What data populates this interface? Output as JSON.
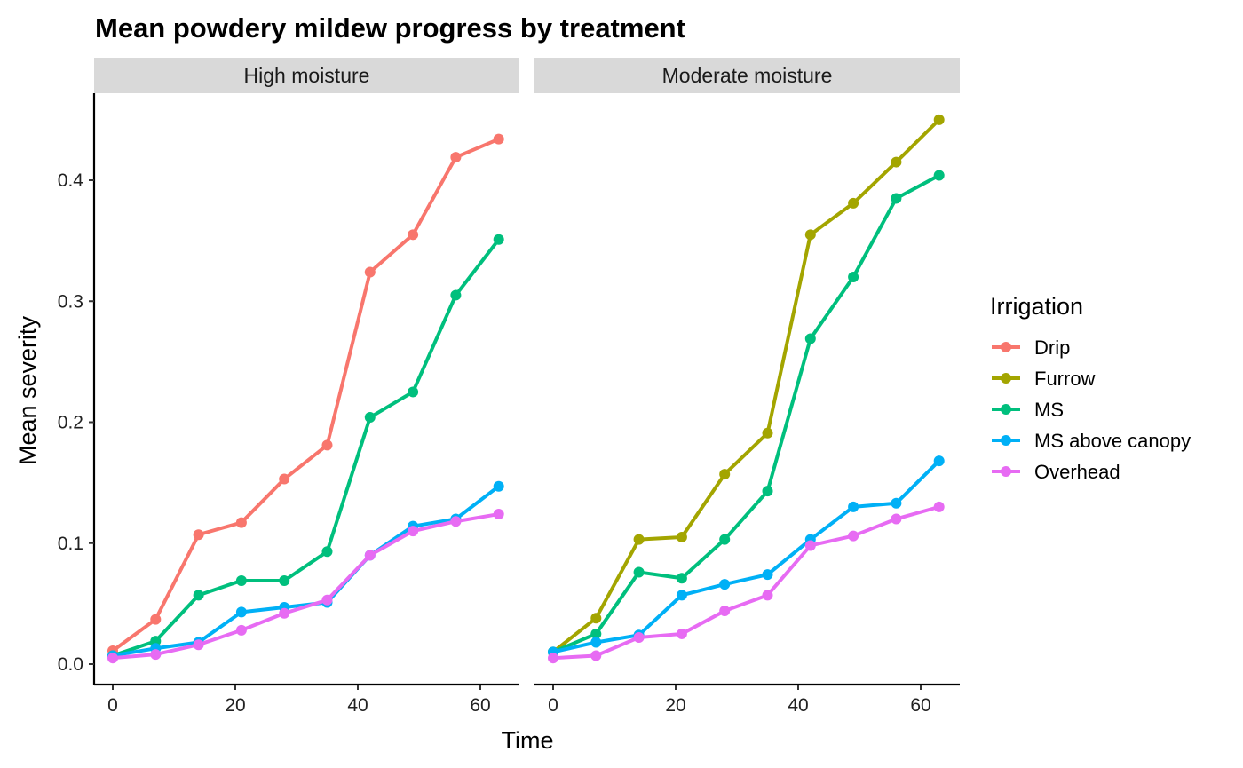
{
  "chart_data": {
    "type": "line",
    "title": "Mean powdery mildew progress by treatment",
    "xlabel": "Time",
    "ylabel": "Mean severity",
    "ylim": [
      -0.018,
      0.47
    ],
    "xlim": [
      -3,
      66
    ],
    "x_ticks": [
      0,
      20,
      40,
      60
    ],
    "y_ticks": [
      0.0,
      0.1,
      0.2,
      0.3,
      0.4
    ],
    "y_tick_labels": [
      "0.0",
      "0.1",
      "0.2",
      "0.3",
      "0.4"
    ],
    "grid": false,
    "legend_position": "right",
    "legend_title": "Irrigation",
    "legend": [
      {
        "name": "Drip",
        "color": "#F8766D"
      },
      {
        "name": "Furrow",
        "color": "#A3A500"
      },
      {
        "name": "MS",
        "color": "#00BF7D"
      },
      {
        "name": "MS above canopy",
        "color": "#00B0F6"
      },
      {
        "name": "Overhead",
        "color": "#E76BF3"
      }
    ],
    "x": [
      0,
      7,
      14,
      21,
      28,
      35,
      42,
      49,
      56,
      63
    ],
    "panels": [
      {
        "label": "High moisture",
        "series": [
          {
            "name": "Drip",
            "color": "#F8766D",
            "values": [
              0.011,
              0.037,
              0.107,
              0.117,
              0.153,
              0.181,
              0.324,
              0.355,
              0.419,
              0.434
            ]
          },
          {
            "name": "MS",
            "color": "#00BF7D",
            "values": [
              0.007,
              0.019,
              0.057,
              0.069,
              0.069,
              0.093,
              0.204,
              0.225,
              0.305,
              0.351
            ]
          },
          {
            "name": "MS above canopy",
            "color": "#00B0F6",
            "values": [
              0.007,
              0.013,
              0.018,
              0.043,
              0.047,
              0.051,
              0.09,
              0.114,
              0.12,
              0.147
            ]
          },
          {
            "name": "Overhead",
            "color": "#E76BF3",
            "values": [
              0.005,
              0.008,
              0.016,
              0.028,
              0.042,
              0.053,
              0.09,
              0.11,
              0.118,
              0.124
            ]
          }
        ]
      },
      {
        "label": "Moderate moisture",
        "series": [
          {
            "name": "Furrow",
            "color": "#A3A500",
            "values": [
              0.01,
              0.038,
              0.103,
              0.105,
              0.157,
              0.191,
              0.355,
              0.381,
              0.415,
              0.45
            ]
          },
          {
            "name": "MS",
            "color": "#00BF7D",
            "values": [
              0.01,
              0.025,
              0.076,
              0.071,
              0.103,
              0.143,
              0.269,
              0.32,
              0.385,
              0.404
            ]
          },
          {
            "name": "MS above canopy",
            "color": "#00B0F6",
            "values": [
              0.01,
              0.018,
              0.024,
              0.057,
              0.066,
              0.074,
              0.103,
              0.13,
              0.133,
              0.168
            ]
          },
          {
            "name": "Overhead",
            "color": "#E76BF3",
            "values": [
              0.005,
              0.007,
              0.022,
              0.025,
              0.044,
              0.057,
              0.098,
              0.106,
              0.12,
              0.13
            ]
          }
        ]
      }
    ]
  }
}
